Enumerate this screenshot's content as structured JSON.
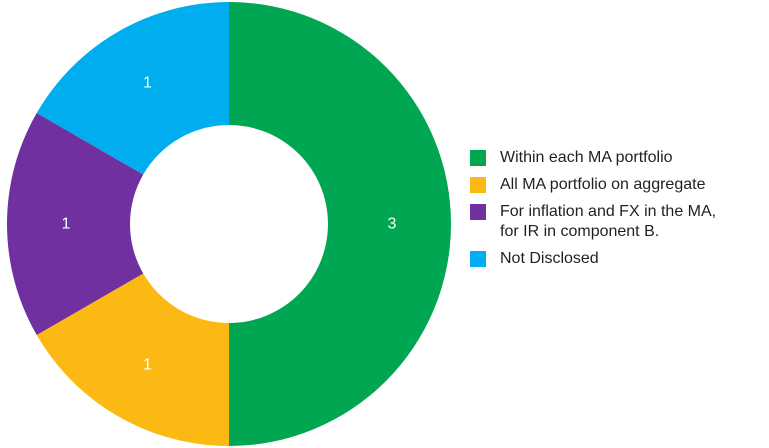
{
  "chart_data": {
    "type": "pie",
    "donut": true,
    "legend_position": "right",
    "slices": [
      {
        "label": "Within each MA portfolio",
        "value": 3,
        "value_label": "3",
        "color": "#00A651"
      },
      {
        "label": "All MA portfolio on aggregate",
        "value": 1,
        "value_label": "1",
        "color": "#FDB913"
      },
      {
        "label": "For inflation and FX in the MA,\nfor IR in component B.",
        "value": 1,
        "value_label": "1",
        "color": "#7030A0"
      },
      {
        "label": "Not Disclosed",
        "value": 1,
        "value_label": "1",
        "color": "#00AEEF"
      }
    ]
  }
}
